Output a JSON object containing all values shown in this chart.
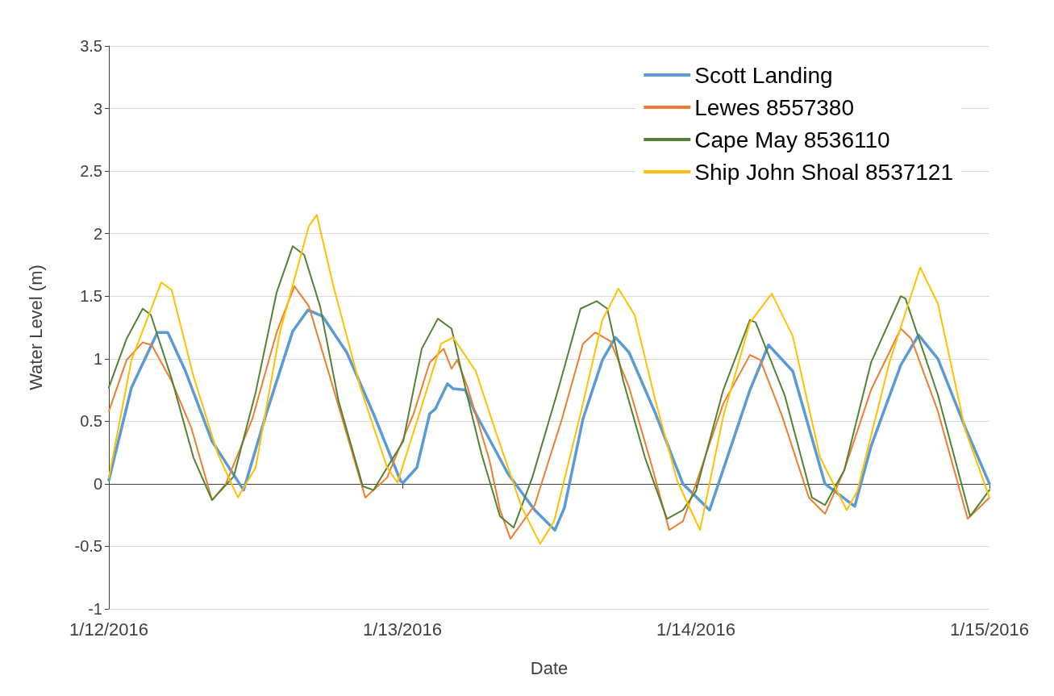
{
  "chart_data": {
    "type": "line",
    "xlabel": "Date",
    "ylabel": "Water Level (m)",
    "xlim": [
      "2016-01-12",
      "2016-01-15"
    ],
    "xticks": [
      {
        "value": "2016-01-12",
        "label": "1/12/2016"
      },
      {
        "value": "2016-01-13",
        "label": "1/13/2016"
      },
      {
        "value": "2016-01-14",
        "label": "1/14/2016"
      },
      {
        "value": "2016-01-15",
        "label": "1/15/2016"
      }
    ],
    "ylim": [
      -1,
      3.5
    ],
    "yticks": [
      -1,
      -0.5,
      0,
      0.5,
      1,
      1.5,
      2,
      2.5,
      3,
      3.5
    ],
    "grid": "y",
    "legend": "top right",
    "marker": "none",
    "line_style": "solid",
    "series": [
      {
        "name": "Scott Landing",
        "color": "#5b9bd5",
        "x": [
          "2016-01-12T00:00",
          "2016-01-12T01:51",
          "2016-01-12T03:58",
          "2016-01-12T04:49",
          "2016-01-12T06:16",
          "2016-01-12T08:26",
          "2016-01-12T11:01",
          "2016-01-12T12:52",
          "2016-01-12T15:02",
          "2016-01-12T16:17",
          "2016-01-12T17:28",
          "2016-01-12T19:27",
          "2016-01-12T21:38",
          "2016-01-12T23:52",
          "2016-01-13T00:04",
          "2016-01-13T01:11",
          "2016-01-13T02:14",
          "2016-01-13T02:42",
          "2016-01-13T03:41",
          "2016-01-13T04:09",
          "2016-01-13T05:08",
          "2016-01-13T06:00",
          "2016-01-13T08:38",
          "2016-01-13T10:49",
          "2016-01-13T12:28",
          "2016-01-13T13:15",
          "2016-01-13T14:46",
          "2016-01-13T16:21",
          "2016-01-13T17:25",
          "2016-01-13T18:32",
          "2016-01-13T20:42",
          "2016-01-13T22:56",
          "2016-01-14T01:07",
          "2016-01-14T04:25",
          "2016-01-14T05:56",
          "2016-01-14T07:55",
          "2016-01-14T09:14",
          "2016-01-14T10:33",
          "2016-01-14T12:59",
          "2016-01-14T14:19",
          "2016-01-14T16:45",
          "2016-01-14T18:12",
          "2016-01-14T19:47",
          "2016-01-14T22:01",
          "2016-01-15T00:00"
        ],
        "values": [
          0.03,
          0.77,
          1.21,
          1.21,
          0.9,
          0.34,
          -0.05,
          0.56,
          1.22,
          1.39,
          1.34,
          1.05,
          0.56,
          0.02,
          0.01,
          0.13,
          0.56,
          0.6,
          0.8,
          0.76,
          0.75,
          0.56,
          0.08,
          -0.21,
          -0.37,
          -0.19,
          0.52,
          0.99,
          1.17,
          1.05,
          0.56,
          0.0,
          -0.21,
          0.75,
          1.11,
          0.9,
          0.45,
          0.0,
          -0.18,
          0.3,
          0.95,
          1.19,
          1.0,
          0.45,
          0.0
        ]
      },
      {
        "name": "Lewes 8557380",
        "color": "#ed7d31",
        "x": [
          "2016-01-12T00:00",
          "2016-01-12T01:27",
          "2016-01-12T02:46",
          "2016-01-12T03:30",
          "2016-01-12T05:08",
          "2016-01-12T06:44",
          "2016-01-12T08:26",
          "2016-01-12T09:34",
          "2016-01-12T11:44",
          "2016-01-12T13:43",
          "2016-01-12T15:10",
          "2016-01-12T16:21",
          "2016-01-12T18:20",
          "2016-01-12T20:58",
          "2016-01-12T22:45",
          "2016-01-13T00:55",
          "2016-01-13T02:14",
          "2016-01-13T03:22",
          "2016-01-13T04:01",
          "2016-01-13T04:29",
          "2016-01-13T05:20",
          "2016-01-13T07:07",
          "2016-01-13T07:59",
          "2016-01-13T08:50",
          "2016-01-13T10:49",
          "2016-01-13T13:03",
          "2016-01-13T14:46",
          "2016-01-13T15:46",
          "2016-01-13T17:01",
          "2016-01-13T18:32",
          "2016-01-13T20:19",
          "2016-01-13T21:49",
          "2016-01-13T22:56",
          "2016-01-14T00:00",
          "2016-01-14T02:14",
          "2016-01-14T04:25",
          "2016-01-14T05:16",
          "2016-01-14T07:03",
          "2016-01-14T09:14",
          "2016-01-14T10:33",
          "2016-01-14T12:08",
          "2016-01-14T14:19",
          "2016-01-14T16:45",
          "2016-01-14T17:36",
          "2016-01-14T19:47",
          "2016-01-14T22:13",
          "2016-01-15T00:00"
        ],
        "values": [
          0.58,
          0.99,
          1.13,
          1.11,
          0.82,
          0.45,
          -0.13,
          0.0,
          0.52,
          1.21,
          1.58,
          1.42,
          0.77,
          -0.11,
          0.05,
          0.56,
          0.97,
          1.08,
          0.92,
          0.99,
          0.77,
          0.19,
          -0.21,
          -0.44,
          -0.17,
          0.52,
          1.12,
          1.21,
          1.14,
          0.77,
          0.17,
          -0.37,
          -0.3,
          0.0,
          0.64,
          1.03,
          0.99,
          0.54,
          -0.11,
          -0.24,
          0.11,
          0.75,
          1.24,
          1.16,
          0.58,
          -0.28,
          -0.11
        ]
      },
      {
        "name": "Cape May 8536110",
        "color": "#548235",
        "x": [
          "2016-01-12T00:00",
          "2016-01-12T01:27",
          "2016-01-12T02:46",
          "2016-01-12T03:26",
          "2016-01-12T05:08",
          "2016-01-12T06:55",
          "2016-01-12T08:26",
          "2016-01-12T10:13",
          "2016-01-12T12:00",
          "2016-01-12T13:43",
          "2016-01-12T15:02",
          "2016-01-12T15:58",
          "2016-01-12T17:16",
          "2016-01-12T18:47",
          "2016-01-12T20:46",
          "2016-01-12T21:38",
          "2016-01-12T22:45",
          "2016-01-13T00:04",
          "2016-01-13T01:35",
          "2016-01-13T02:54",
          "2016-01-13T04:01",
          "2016-01-13T05:20",
          "2016-01-13T06:28",
          "2016-01-13T07:59",
          "2016-01-13T09:06",
          "2016-01-13T10:37",
          "2016-01-13T12:47",
          "2016-01-13T14:34",
          "2016-01-13T15:53",
          "2016-01-13T16:45",
          "2016-01-13T18:04",
          "2016-01-13T19:50",
          "2016-01-13T21:38",
          "2016-01-13T22:56",
          "2016-01-14T00:00",
          "2016-01-14T02:14",
          "2016-01-14T04:25",
          "2016-01-14T04:53",
          "2016-01-14T07:15",
          "2016-01-14T09:29",
          "2016-01-14T10:33",
          "2016-01-14T12:08",
          "2016-01-14T14:19",
          "2016-01-14T16:45",
          "2016-01-14T17:08",
          "2016-01-14T19:47",
          "2016-01-14T22:25",
          "2016-01-15T00:00"
        ],
        "values": [
          0.77,
          1.16,
          1.4,
          1.35,
          0.84,
          0.21,
          -0.13,
          0.06,
          0.73,
          1.53,
          1.9,
          1.83,
          1.42,
          0.66,
          -0.02,
          -0.05,
          0.13,
          0.34,
          1.08,
          1.32,
          1.24,
          0.69,
          0.24,
          -0.26,
          -0.35,
          0.05,
          0.77,
          1.4,
          1.46,
          1.4,
          0.82,
          0.21,
          -0.28,
          -0.21,
          -0.06,
          0.75,
          1.31,
          1.29,
          0.71,
          -0.11,
          -0.17,
          0.11,
          0.97,
          1.5,
          1.48,
          0.71,
          -0.26,
          -0.05
        ]
      },
      {
        "name": "Ship John Shoal 8537121",
        "color": "#ffc000",
        "x": [
          "2016-01-12T00:00",
          "2016-01-12T01:51",
          "2016-01-12T04:17",
          "2016-01-12T05:08",
          "2016-01-12T06:55",
          "2016-01-12T08:54",
          "2016-01-12T10:33",
          "2016-01-12T12:00",
          "2016-01-12T13:59",
          "2016-01-12T16:21",
          "2016-01-12T17:00",
          "2016-01-12T18:20",
          "2016-01-12T20:34",
          "2016-01-12T22:45",
          "2016-01-12T23:36",
          "2016-01-13T01:23",
          "2016-01-13T03:10",
          "2016-01-13T04:09",
          "2016-01-13T06:00",
          "2016-01-13T07:31",
          "2016-01-13T09:46",
          "2016-01-13T11:16",
          "2016-01-13T12:24",
          "2016-01-13T14:34",
          "2016-01-13T16:21",
          "2016-01-13T17:40",
          "2016-01-13T18:59",
          "2016-01-13T20:42",
          "2016-01-13T22:29",
          "2016-01-14T00:20",
          "2016-01-14T02:14",
          "2016-01-14T04:25",
          "2016-01-14T06:12",
          "2016-01-14T07:55",
          "2016-01-14T10:09",
          "2016-01-14T12:20",
          "2016-01-14T13:11",
          "2016-01-14T15:49",
          "2016-01-14T18:20",
          "2016-01-14T19:47",
          "2016-01-14T22:01",
          "2016-01-15T00:00"
        ],
        "values": [
          0.05,
          0.99,
          1.61,
          1.55,
          0.86,
          0.24,
          -0.11,
          0.13,
          1.21,
          2.06,
          2.15,
          1.59,
          0.77,
          0.13,
          0.01,
          0.56,
          1.12,
          1.17,
          0.9,
          0.45,
          -0.19,
          -0.48,
          -0.3,
          0.56,
          1.31,
          1.56,
          1.35,
          0.66,
          0.02,
          -0.37,
          0.54,
          1.29,
          1.52,
          1.18,
          0.21,
          -0.21,
          -0.06,
          0.97,
          1.73,
          1.44,
          0.43,
          -0.11
        ]
      }
    ]
  }
}
